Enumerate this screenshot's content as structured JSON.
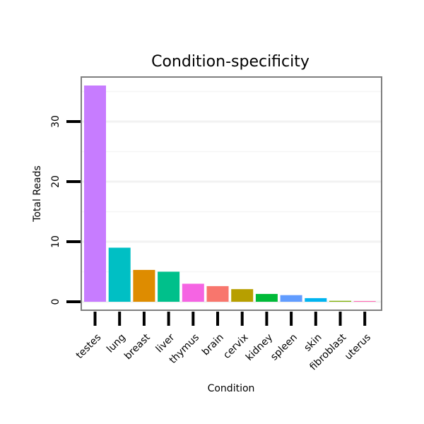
{
  "chart_data": {
    "type": "bar",
    "title": "Condition-specificity",
    "xlabel": "Condition",
    "ylabel": "Total Reads",
    "ylim": [
      0,
      37
    ],
    "yticks": [
      0,
      10,
      20,
      30
    ],
    "grid": true,
    "categories": [
      "testes",
      "lung",
      "breast",
      "liver",
      "thymus",
      "brain",
      "cervix",
      "kidney",
      "spleen",
      "skin",
      "fibroblast",
      "uterus"
    ],
    "values": [
      36,
      9,
      5.3,
      5,
      3,
      2.6,
      2.1,
      1.3,
      1.1,
      0.6,
      0.15,
      0.12
    ],
    "colors": [
      "#C77CFF",
      "#00BFC4",
      "#DE8C00",
      "#00C08B",
      "#F564E3",
      "#F8766D",
      "#B79F00",
      "#00BA38",
      "#619CFF",
      "#00B4F0",
      "#7CAE00",
      "#FF64B0"
    ]
  }
}
